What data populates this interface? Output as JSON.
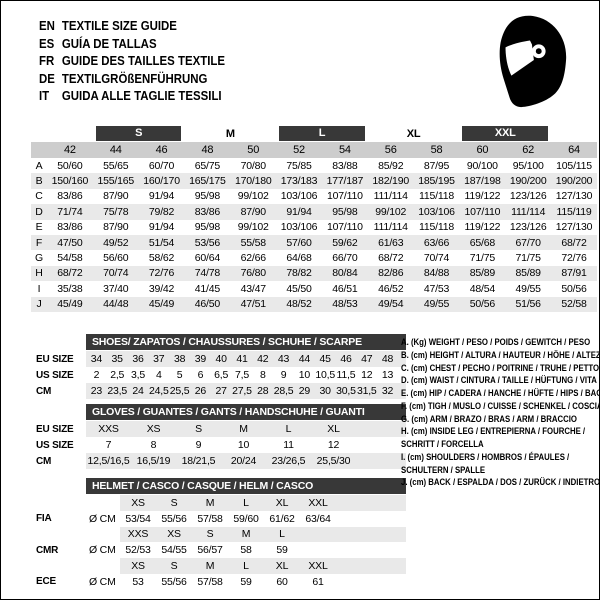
{
  "header": {
    "languages": [
      {
        "code": "EN",
        "text": "TEXTILE SIZE GUIDE"
      },
      {
        "code": "ES",
        "text": "GUÍA DE TALLAS"
      },
      {
        "code": "FR",
        "text": "GUIDE DES TAILLES TEXTILE"
      },
      {
        "code": "DE",
        "text": "TEXTILGRÖßENFÜHRUNG"
      },
      {
        "code": "IT",
        "text": "GUIDA ALLE TAGLIE TESSILI"
      }
    ]
  },
  "colors": {
    "dark_bar": "#383838",
    "size_row_gray": "#cdcdcd",
    "stripe_gray": "#e9e9e9",
    "helmet_icon": "#000000"
  },
  "main_table": {
    "size_groups": [
      {
        "label": "S",
        "dark": true
      },
      {
        "label": "M",
        "dark": false
      },
      {
        "label": "L",
        "dark": true
      },
      {
        "label": "XL",
        "dark": false
      },
      {
        "label": "XXL",
        "dark": true
      }
    ],
    "sizes": [
      "42",
      "44",
      "46",
      "48",
      "50",
      "52",
      "54",
      "56",
      "58",
      "60",
      "62",
      "64"
    ],
    "rows": [
      {
        "label": "A",
        "values": [
          "50/60",
          "55/65",
          "60/70",
          "65/75",
          "70/80",
          "75/85",
          "83/88",
          "85/92",
          "87/95",
          "90/100",
          "95/100",
          "105/115"
        ]
      },
      {
        "label": "B",
        "values": [
          "150/160",
          "155/165",
          "160/170",
          "165/175",
          "170/180",
          "173/183",
          "177/187",
          "182/190",
          "185/195",
          "187/198",
          "190/200",
          "190/200"
        ]
      },
      {
        "label": "C",
        "values": [
          "83/86",
          "87/90",
          "91/94",
          "95/98",
          "99/102",
          "103/106",
          "107/110",
          "111/114",
          "115/118",
          "119/122",
          "123/126",
          "127/130"
        ]
      },
      {
        "label": "D",
        "values": [
          "71/74",
          "75/78",
          "79/82",
          "83/86",
          "87/90",
          "91/94",
          "95/98",
          "99/102",
          "103/106",
          "107/110",
          "111/114",
          "115/119"
        ]
      },
      {
        "label": "E",
        "values": [
          "83/86",
          "87/90",
          "91/94",
          "95/98",
          "99/102",
          "103/106",
          "107/110",
          "111/114",
          "115/118",
          "119/122",
          "123/126",
          "127/130"
        ]
      },
      {
        "label": "F",
        "values": [
          "47/50",
          "49/52",
          "51/54",
          "53/56",
          "55/58",
          "57/60",
          "59/62",
          "61/63",
          "63/66",
          "65/68",
          "67/70",
          "68/72"
        ]
      },
      {
        "label": "G",
        "values": [
          "54/58",
          "56/60",
          "58/62",
          "60/64",
          "62/66",
          "64/68",
          "66/70",
          "68/72",
          "70/74",
          "71/75",
          "71/75",
          "72/76"
        ]
      },
      {
        "label": "H",
        "values": [
          "68/72",
          "70/74",
          "72/76",
          "74/78",
          "76/80",
          "78/82",
          "80/84",
          "82/86",
          "84/88",
          "85/89",
          "85/89",
          "87/91"
        ]
      },
      {
        "label": "I",
        "values": [
          "35/38",
          "37/40",
          "39/42",
          "41/45",
          "43/47",
          "45/50",
          "46/51",
          "46/52",
          "47/53",
          "48/54",
          "49/55",
          "50/56"
        ]
      },
      {
        "label": "J",
        "values": [
          "45/49",
          "44/48",
          "45/49",
          "46/50",
          "47/51",
          "48/52",
          "48/53",
          "49/54",
          "49/55",
          "50/56",
          "51/56",
          "52/58"
        ]
      }
    ]
  },
  "shoes": {
    "title": "SHOES/ ZAPATOS / CHAUSSURES / SCHUHE / SCARPE",
    "rows": [
      {
        "label": "EU SIZE",
        "shaded": true,
        "values": [
          "34",
          "35",
          "36",
          "37",
          "38",
          "39",
          "40",
          "41",
          "42",
          "43",
          "44",
          "45",
          "46",
          "47",
          "48"
        ]
      },
      {
        "label": "US SIZE",
        "shaded": false,
        "values": [
          "2",
          "2,5",
          "3,5",
          "4",
          "5",
          "6",
          "6,5",
          "7,5",
          "8",
          "9",
          "10",
          "10,5",
          "11,5",
          "12",
          "13"
        ]
      },
      {
        "label": "CM",
        "shaded": true,
        "values": [
          "23",
          "23,5",
          "24",
          "24,5",
          "25,5",
          "26",
          "27",
          "27,5",
          "28",
          "28,5",
          "29",
          "30",
          "30,5",
          "31,5",
          "32"
        ]
      }
    ]
  },
  "gloves": {
    "title": "GLOVES / GUANTES / GANTS / HANDSCHUHE / GUANTI",
    "rows": [
      {
        "label": "EU SIZE",
        "shaded": true,
        "values": [
          "XXS",
          "XS",
          "S",
          "M",
          "L",
          "XL"
        ]
      },
      {
        "label": "US SIZE",
        "shaded": false,
        "values": [
          "7",
          "8",
          "9",
          "10",
          "11",
          "12"
        ]
      },
      {
        "label": "CM",
        "shaded": true,
        "values": [
          "12,5/16,5",
          "16,5/19",
          "18/21,5",
          "20/24",
          "23/26,5",
          "25,5/30"
        ]
      }
    ]
  },
  "helmet": {
    "title": "HELMET / CASCO / CASQUE / HELM / CASCO",
    "groups": [
      {
        "label": "FIA",
        "unit": "Ø CM",
        "sizes": [
          "XS",
          "S",
          "M",
          "L",
          "XL",
          "XXL"
        ],
        "values": [
          "53/54",
          "55/56",
          "57/58",
          "59/60",
          "61/62",
          "63/64"
        ]
      },
      {
        "label": "CMR",
        "unit": "Ø CM",
        "sizes": [
          "XXS",
          "XS",
          "S",
          "M",
          "L"
        ],
        "values": [
          "52/53",
          "54/55",
          "56/57",
          "58",
          "59"
        ]
      },
      {
        "label": "ECE",
        "unit": "Ø CM",
        "sizes": [
          "XS",
          "S",
          "M",
          "L",
          "XL",
          "XXL"
        ],
        "values": [
          "53",
          "55/56",
          "57/58",
          "59",
          "60",
          "61"
        ]
      }
    ]
  },
  "legend_lines": [
    "A. (Kg) WEIGHT / PESO / POIDS / GEWITCH / PESO",
    "B. (cm) HEIGHT / ALTURA / HAUTEUR / HÖHE / ALTEZZA",
    "C. (cm) CHEST / PECHO / POITRINE / TRUHE / PETTO",
    "D. (cm) WAIST / CINTURA / TAILLE / HÜFTUNG / VITA",
    "E. (cm) HIP / CADERA / HANCHE / HÜFTE / HIPS / BACINO",
    "F. (cm) TIGH / MUSLO / CUISSE / SCHENKEL / COSCIA",
    "G. (cm) ARM / BRAZO / BRAS / ARM / BRACCIO",
    "H. (cm) INSIDE LEG / ENTREPIERNA / FOURCHE /",
    "SCHRITT / FORCELLA",
    "I. (cm) SHOULDERS / HOMBROS / ÉPAULES /",
    "SCHULTERN / SPALLE",
    "J. (cm) BACK / ESPALDA / DOS / ZURÜCK / INDIETRO"
  ]
}
